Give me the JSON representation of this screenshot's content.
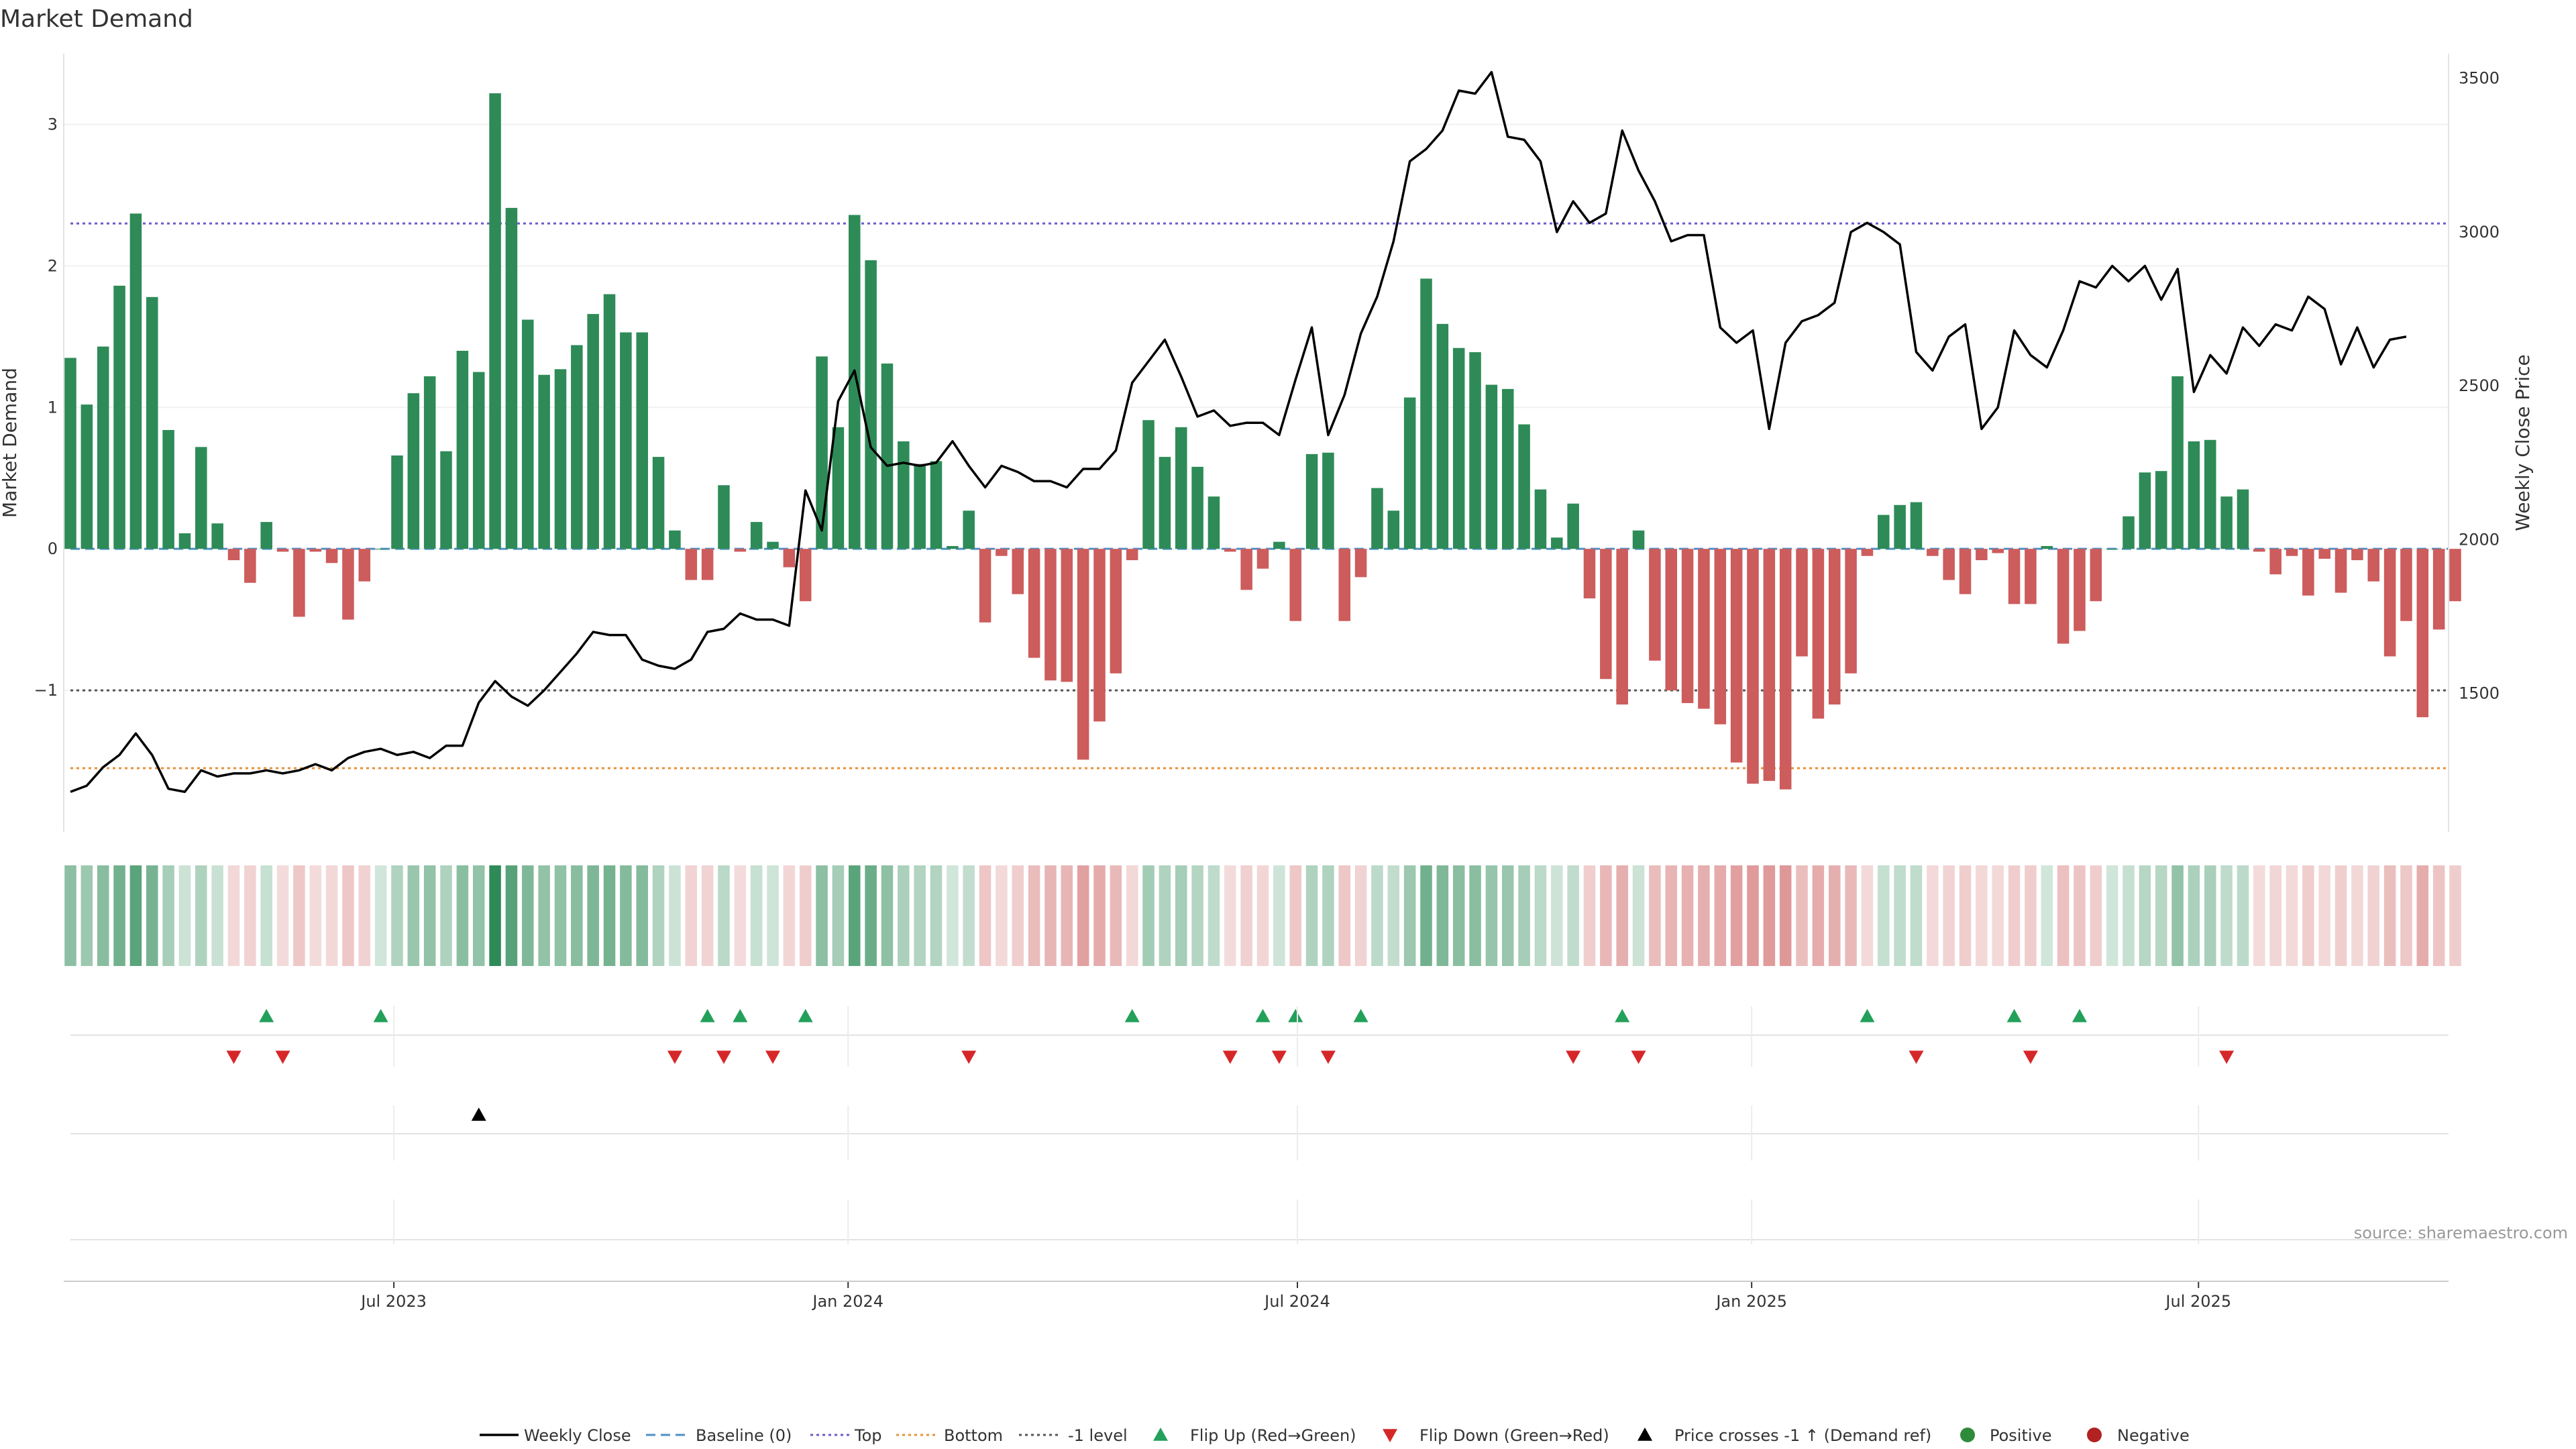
{
  "title": "Market Demand",
  "source": "source: sharemaestro.com",
  "chart_data": {
    "type": "bar",
    "title": "Market Demand",
    "ylabel_left": "Market Demand",
    "ylabel_right": "Weekly Close Price",
    "ylim_left": [
      -2,
      3.5
    ],
    "ylim_right": [
      1050,
      3580
    ],
    "yticks_left": [
      -1,
      0,
      1,
      2,
      3
    ],
    "ytick_labels_left": [
      "−1",
      "0",
      "1",
      "2",
      "3"
    ],
    "yticks_right": [
      1500,
      2000,
      2500,
      3000,
      3500
    ],
    "ytick_labels_right": [
      "1500",
      "2000",
      "2500",
      "3000",
      "3500"
    ],
    "x_start": "2023-02-20",
    "x_end": "2025-10-13",
    "x_interval": "weekly",
    "xticks": [
      "2023-07-01",
      "2024-01-01",
      "2024-07-01",
      "2025-01-01",
      "2025-07-01"
    ],
    "xtick_labels": [
      "Jul 2023",
      "Jan 2024",
      "Jul 2024",
      "Jan 2025",
      "Jul 2025"
    ],
    "reference_lines": [
      {
        "name": "Baseline (0)",
        "value": 0,
        "style": "dashed",
        "color": "#4e8fc6"
      },
      {
        "name": "Top",
        "value": 2.3,
        "style": "dotted",
        "color": "#6a5acd"
      },
      {
        "name": "Bottom",
        "value": -1.55,
        "style": "dotted",
        "color": "#e69138"
      },
      {
        "name": "-1 level",
        "value": -1,
        "style": "dotted",
        "color": "#555555"
      }
    ],
    "demand": [
      1.35,
      1.02,
      1.43,
      1.86,
      2.37,
      1.78,
      0.84,
      0.11,
      0.72,
      0.18,
      -0.08,
      -0.24,
      0.19,
      -0.02,
      -0.48,
      -0.02,
      -0.1,
      -0.5,
      -0.23,
      0,
      0.66,
      1.1,
      1.22,
      0.69,
      1.4,
      1.25,
      3.22,
      2.41,
      1.62,
      1.23,
      1.27,
      1.44,
      1.66,
      1.8,
      1.53,
      1.53,
      0.65,
      0.13,
      -0.22,
      -0.22,
      0.45,
      -0.02,
      0.19,
      0.05,
      -0.13,
      -0.37,
      1.36,
      0.86,
      2.36,
      2.04,
      1.31,
      0.76,
      0.6,
      0.62,
      0.02,
      0.27,
      -0.52,
      -0.05,
      -0.32,
      -0.77,
      -0.93,
      -0.94,
      -1.49,
      -1.22,
      -0.88,
      -0.08,
      0.91,
      0.65,
      0.86,
      0.58,
      0.37,
      -0.02,
      -0.29,
      -0.14,
      0.05,
      -0.51,
      0.67,
      0.68,
      -0.51,
      -0.2,
      0.43,
      0.27,
      1.07,
      1.91,
      1.59,
      1.42,
      1.39,
      1.16,
      1.13,
      0.88,
      0.42,
      0.08,
      0.32,
      -0.35,
      -0.92,
      -1.1,
      0.13,
      -0.79,
      -1.0,
      -1.09,
      -1.13,
      -1.24,
      -1.51,
      -1.66,
      -1.64,
      -1.7,
      -0.76,
      -1.2,
      -1.1,
      -0.88,
      -0.05,
      0.24,
      0.31,
      0.33,
      -0.05,
      -0.22,
      -0.32,
      -0.08,
      -0.03,
      -0.39,
      -0.39,
      0.02,
      -0.67,
      -0.58,
      -0.37,
      0,
      0.23,
      0.54,
      0.55,
      1.22,
      0.76,
      0.77,
      0.37,
      0.42,
      -0.02,
      -0.18,
      -0.05,
      -0.33,
      -0.07,
      -0.31,
      -0.08,
      -0.23,
      -0.76,
      -0.51,
      -1.19,
      -0.57,
      -0.37
    ],
    "close": [
      1180,
      1200,
      1260,
      1300,
      1370,
      1300,
      1190,
      1180,
      1250,
      1230,
      1240,
      1240,
      1250,
      1240,
      1250,
      1270,
      1250,
      1290,
      1310,
      1320,
      1300,
      1310,
      1290,
      1330,
      1330,
      1470,
      1540,
      1490,
      1460,
      1510,
      1570,
      1630,
      1700,
      1690,
      1690,
      1610,
      1590,
      1580,
      1610,
      1700,
      1710,
      1760,
      1740,
      1740,
      1720,
      2160,
      2030,
      2450,
      2550,
      2300,
      2240,
      2250,
      2240,
      2250,
      2320,
      2240,
      2170,
      2240,
      2220,
      2190,
      2190,
      2170,
      2230,
      2230,
      2290,
      2510,
      2580,
      2650,
      2530,
      2400,
      2420,
      2370,
      2380,
      2380,
      2340,
      2520,
      2690,
      2340,
      2470,
      2670,
      2790,
      2970,
      3230,
      3270,
      3330,
      3460,
      3450,
      3520,
      3310,
      3300,
      3230,
      3000,
      3100,
      3030,
      3060,
      3330,
      3200,
      3100,
      2970,
      2990,
      2990,
      2690,
      2640,
      2680,
      2360,
      2640,
      2710,
      2730,
      2770,
      3000,
      3030,
      3000,
      2960,
      2610,
      2550,
      2660,
      2700,
      2360,
      2430,
      2680,
      2600,
      2560,
      2680,
      2840,
      2820,
      2890,
      2840,
      2890,
      2780,
      2880,
      2480,
      2600,
      2540,
      2690,
      2630,
      2700,
      2680,
      2790,
      2750,
      2570,
      2690,
      2560,
      2650,
      2660
    ],
    "series": [
      {
        "name": "Weekly Close",
        "type": "line",
        "color": "#000000"
      },
      {
        "name": "Positive",
        "color": "#2e8b57"
      },
      {
        "name": "Negative",
        "color": "#cd5c5c"
      }
    ],
    "flip_up_weeks": [
      12,
      19,
      39,
      41,
      45,
      65,
      73,
      75,
      79,
      95,
      110,
      119,
      123
    ],
    "flip_down_weeks": [
      10,
      13,
      37,
      40,
      43,
      55,
      71,
      74,
      77,
      92,
      96,
      113,
      120,
      132
    ],
    "price_cross_weeks": [
      25
    ],
    "legend_position": "bottom",
    "legend": [
      "Weekly Close",
      "Baseline (0)",
      "Top",
      "Bottom",
      "-1 level",
      "Flip Up (Red→Green)",
      "Flip Down (Green→Red)",
      "Price crosses -1 ↑ (Demand ref)",
      "Positive",
      "Negative"
    ],
    "colors": {
      "positive": "#2e8b57",
      "negative": "#cd5c5c",
      "close": "#000000",
      "flip_up": "#23a05a",
      "flip_down": "#d62728",
      "cross": "#000000",
      "positive_dot": "#2e8b3a",
      "negative_dot": "#b22222"
    }
  }
}
